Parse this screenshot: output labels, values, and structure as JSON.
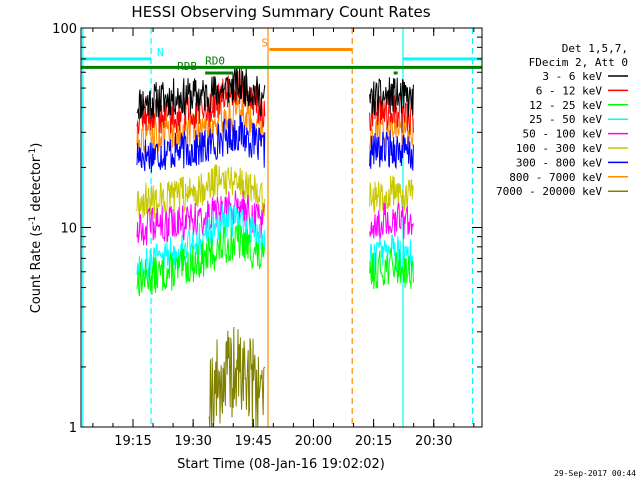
{
  "chart_data": {
    "type": "line",
    "title": "HESSI Observing Summary Count Rates",
    "xlabel": "Start Time (08-Jan-16 19:02:02)",
    "ylabel": "Count Rate (s",
    "ylabel_sup": "-1",
    "ylabel_mid": " detector",
    "ylabel_end": ")",
    "x_scale": "time",
    "x_range": [
      "19:02:02",
      "20:42:02"
    ],
    "x_ticks": [
      "19:15",
      "19:30",
      "19:45",
      "20:00",
      "20:15",
      "20:30"
    ],
    "y_scale": "log",
    "ylim": [
      1,
      100
    ],
    "y_ticks": [
      "1",
      "10",
      "100"
    ],
    "legend": {
      "placement": "right",
      "header": [
        "Det 1,5,7,",
        "FDecim 2, Att 0"
      ]
    },
    "series": [
      {
        "name": "3 - 6 keV",
        "color": "#000000",
        "seed": 11,
        "segments": [
          {
            "start": "19:16:00",
            "end": "19:48:00",
            "points": [
              [
                "19:16:00",
                42
              ],
              [
                "19:25:00",
                45
              ],
              [
                "19:33:00",
                46
              ],
              [
                "19:37:00",
                49
              ],
              [
                "19:41:00",
                52
              ],
              [
                "19:44:00",
                50
              ],
              [
                "19:48:00",
                43
              ]
            ]
          },
          {
            "start": "20:14:00",
            "end": "20:25:00",
            "points": [
              [
                "20:14:00",
                44
              ],
              [
                "20:20:00",
                46
              ],
              [
                "20:25:00",
                43
              ]
            ]
          }
        ]
      },
      {
        "name": "6 - 12 keV",
        "color": "#ff0000",
        "seed": 12,
        "segments": [
          {
            "start": "19:16:00",
            "end": "19:48:00",
            "points": [
              [
                "19:16:00",
                36
              ],
              [
                "19:25:00",
                37
              ],
              [
                "19:33:00",
                38
              ],
              [
                "19:37:00",
                44
              ],
              [
                "19:41:00",
                52
              ],
              [
                "19:44:00",
                47
              ],
              [
                "19:48:00",
                37
              ]
            ]
          },
          {
            "start": "20:14:00",
            "end": "20:25:00",
            "points": [
              [
                "20:14:00",
                37
              ],
              [
                "20:20:00",
                38
              ],
              [
                "20:25:00",
                36
              ]
            ]
          }
        ]
      },
      {
        "name": "12 - 25 keV",
        "color": "#00ff00",
        "seed": 13,
        "segments": [
          {
            "start": "19:16:00",
            "end": "19:48:00",
            "points": [
              [
                "19:16:00",
                5.5
              ],
              [
                "19:25:00",
                6
              ],
              [
                "19:33:00",
                7
              ],
              [
                "19:37:00",
                8
              ],
              [
                "19:41:00",
                8.5
              ],
              [
                "19:44:00",
                8
              ],
              [
                "19:48:00",
                6.5
              ]
            ]
          },
          {
            "start": "20:14:00",
            "end": "20:25:00",
            "points": [
              [
                "20:14:00",
                6
              ],
              [
                "20:20:00",
                6.5
              ],
              [
                "20:25:00",
                6
              ]
            ]
          }
        ]
      },
      {
        "name": "25 - 50 keV",
        "color": "#00ffff",
        "seed": 14,
        "segments": [
          {
            "start": "19:16:00",
            "end": "19:48:00",
            "points": [
              [
                "19:16:00",
                6.5
              ],
              [
                "19:25:00",
                7.5
              ],
              [
                "19:33:00",
                9
              ],
              [
                "19:37:00",
                10.5
              ],
              [
                "19:41:00",
                11
              ],
              [
                "19:44:00",
                10
              ],
              [
                "19:48:00",
                8
              ]
            ]
          },
          {
            "start": "20:14:00",
            "end": "20:25:00",
            "points": [
              [
                "20:14:00",
                7
              ],
              [
                "20:20:00",
                7.5
              ],
              [
                "20:25:00",
                7
              ]
            ]
          }
        ]
      },
      {
        "name": "50 - 100 keV",
        "color": "#ff00ff",
        "seed": 15,
        "segments": [
          {
            "start": "19:16:00",
            "end": "19:48:00",
            "points": [
              [
                "19:16:00",
                10
              ],
              [
                "19:25:00",
                10.5
              ],
              [
                "19:33:00",
                11
              ],
              [
                "19:37:00",
                12
              ],
              [
                "19:41:00",
                12.5
              ],
              [
                "19:44:00",
                12
              ],
              [
                "19:48:00",
                10.5
              ]
            ]
          },
          {
            "start": "20:14:00",
            "end": "20:25:00",
            "points": [
              [
                "20:14:00",
                10.5
              ],
              [
                "20:20:00",
                11
              ],
              [
                "20:25:00",
                10.5
              ]
            ]
          }
        ]
      },
      {
        "name": "100 - 300 keV",
        "color": "#c8c800",
        "seed": 16,
        "segments": [
          {
            "start": "19:16:00",
            "end": "19:48:00",
            "points": [
              [
                "19:16:00",
                13.5
              ],
              [
                "19:25:00",
                14
              ],
              [
                "19:33:00",
                16
              ],
              [
                "19:37:00",
                18
              ],
              [
                "19:41:00",
                17.5
              ],
              [
                "19:44:00",
                16
              ],
              [
                "19:48:00",
                14
              ]
            ]
          },
          {
            "start": "20:14:00",
            "end": "20:25:00",
            "points": [
              [
                "20:14:00",
                14.5
              ],
              [
                "20:20:00",
                15
              ],
              [
                "20:25:00",
                14.5
              ]
            ]
          }
        ]
      },
      {
        "name": "300 - 800 keV",
        "color": "#0000ff",
        "seed": 17,
        "segments": [
          {
            "start": "19:16:00",
            "end": "19:48:00",
            "points": [
              [
                "19:16:00",
                23
              ],
              [
                "19:25:00",
                24
              ],
              [
                "19:33:00",
                25
              ],
              [
                "19:37:00",
                28
              ],
              [
                "19:41:00",
                30
              ],
              [
                "19:44:00",
                28
              ],
              [
                "19:48:00",
                24
              ]
            ]
          },
          {
            "start": "20:14:00",
            "end": "20:25:00",
            "points": [
              [
                "20:14:00",
                24
              ],
              [
                "20:20:00",
                25
              ],
              [
                "20:25:00",
                23
              ]
            ]
          }
        ]
      },
      {
        "name": "800 - 7000 keV",
        "color": "#ff8c00",
        "seed": 18,
        "segments": [
          {
            "start": "19:16:00",
            "end": "19:48:00",
            "points": [
              [
                "19:16:00",
                29
              ],
              [
                "19:25:00",
                30
              ],
              [
                "19:33:00",
                31
              ],
              [
                "19:37:00",
                35
              ],
              [
                "19:41:00",
                38
              ],
              [
                "19:44:00",
                36
              ],
              [
                "19:48:00",
                30
              ]
            ]
          },
          {
            "start": "20:14:00",
            "end": "20:25:00",
            "points": [
              [
                "20:14:00",
                30
              ],
              [
                "20:20:00",
                31
              ],
              [
                "20:25:00",
                29
              ]
            ]
          }
        ]
      },
      {
        "name": "7000 - 20000 keV",
        "color": "#808000",
        "seed": 19,
        "segments": [
          {
            "start": "19:34:00",
            "end": "19:48:00",
            "points": [
              [
                "19:34:00",
                1.5
              ],
              [
                "19:38:00",
                1.8
              ],
              [
                "19:42:00",
                1.9
              ],
              [
                "19:45:00",
                1.7
              ],
              [
                "19:48:00",
                1.5
              ]
            ]
          }
        ]
      }
    ],
    "vertical_markers": [
      {
        "time": "19:02:30",
        "style": "solid",
        "color": "#00ffff"
      },
      {
        "time": "19:19:30",
        "style": "dashed",
        "color": "#00ffff"
      },
      {
        "time": "19:48:40",
        "style": "solid",
        "color": "#ff8c00"
      },
      {
        "time": "20:09:40",
        "style": "dashed",
        "color": "#ff8c00"
      },
      {
        "time": "20:22:20",
        "style": "solid",
        "color": "#00ffff"
      },
      {
        "time": "20:39:40",
        "style": "dashed",
        "color": "#00ffff"
      }
    ],
    "flag_bars": [
      {
        "label": "N",
        "start": "19:02:02",
        "end": "19:19:30",
        "level": 70,
        "color": "#00ffff",
        "label_at": "19:21:00"
      },
      {
        "label": "",
        "start": "20:22:20",
        "end": "20:42:02",
        "level": 70,
        "color": "#00ffff"
      },
      {
        "label": "S",
        "start": "19:49:00",
        "end": "20:09:40",
        "level": 78,
        "color": "#ff8c00",
        "label_at": "19:47:00"
      },
      {
        "label": "RD0",
        "start": "19:02:02",
        "end": "20:42:02",
        "level": 63.5,
        "color": "#008000",
        "label_at": "19:33:00"
      },
      {
        "label": "RDB",
        "start": "19:33:00",
        "end": "19:40:00",
        "level": 59.5,
        "color": "#008000",
        "label_at": "19:26:00"
      },
      {
        "label": "",
        "start": "20:20:00",
        "end": "20:21:00",
        "level": 59.5,
        "color": "#008000"
      }
    ],
    "timestamp": "29-Sep-2017 00:44"
  }
}
